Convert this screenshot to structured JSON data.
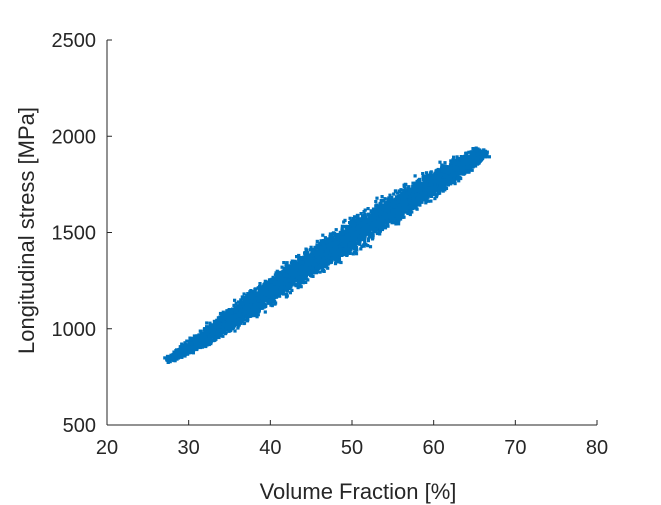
{
  "chart_data": {
    "type": "scatter",
    "title": "",
    "xlabel": "Volume Fraction [%]",
    "ylabel": "Longitudinal stress [MPa]",
    "xlim": [
      20,
      80
    ],
    "ylim": [
      500,
      2500
    ],
    "xticks": [
      20,
      30,
      40,
      50,
      60,
      70,
      80
    ],
    "yticks": [
      500,
      1000,
      1500,
      2000,
      2500
    ],
    "xtick_labels": [
      "20",
      "30",
      "40",
      "50",
      "60",
      "70",
      "80"
    ],
    "ytick_labels": [
      "500",
      "1000",
      "1500",
      "2000",
      "2500"
    ],
    "grid": false,
    "box": false,
    "marker_color": "#0072BD",
    "series": [
      {
        "x": [
          27.5,
          28.5,
          29.5,
          30.5,
          31.5,
          32.5,
          33.5,
          34.5,
          35.5,
          36.5,
          37.5,
          38.5,
          39.5,
          40.5,
          41.5,
          42.5,
          43.5,
          44.5,
          45.5,
          46.5,
          47.5,
          48.5,
          49.5,
          50.5,
          51.5,
          52.5,
          53.5,
          54.5,
          55.5,
          56.5,
          57.5,
          58.5,
          59.5,
          60.5,
          61.5,
          62.5,
          63.5,
          64.5,
          65.5,
          66.0
        ],
        "y": [
          850,
          880,
          905,
          930,
          955,
          985,
          1015,
          1045,
          1075,
          1105,
          1135,
          1165,
          1195,
          1225,
          1255,
          1285,
          1310,
          1340,
          1370,
          1400,
          1425,
          1455,
          1485,
          1510,
          1540,
          1565,
          1595,
          1620,
          1650,
          1675,
          1700,
          1730,
          1755,
          1780,
          1810,
          1835,
          1860,
          1885,
          1905,
          1920
        ],
        "y_spread": [
          20,
          30,
          40,
          50,
          60,
          65,
          70,
          75,
          80,
          85,
          88,
          90,
          92,
          94,
          95,
          96,
          97,
          98,
          99,
          100,
          100,
          100,
          100,
          100,
          100,
          100,
          100,
          98,
          96,
          94,
          92,
          90,
          88,
          84,
          80,
          74,
          66,
          56,
          44,
          30
        ]
      }
    ]
  }
}
